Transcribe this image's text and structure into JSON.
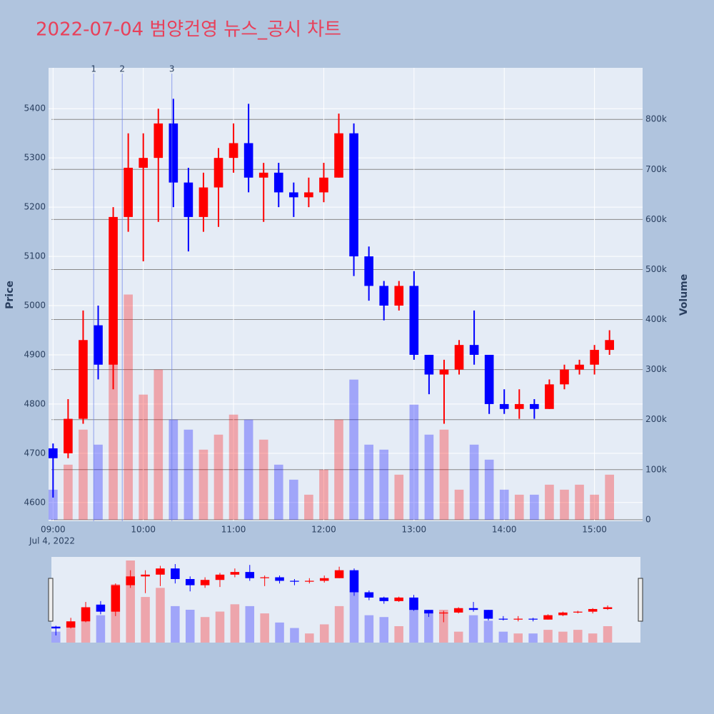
{
  "chart_data": {
    "type": "candlestick",
    "title": "2022-07-04 범양건영 뉴스_공시 차트",
    "ylabel": "Price",
    "y2label": "Volume",
    "x_date_label": "Jul 4, 2022",
    "up_color": "#ff0000",
    "down_color": "#0000ff",
    "x": [
      "2022-07-04 09:00",
      "2022-07-04 09:10",
      "2022-07-04 09:20",
      "2022-07-04 09:30",
      "2022-07-04 09:40",
      "2022-07-04 09:50",
      "2022-07-04 10:00",
      "2022-07-04 10:10",
      "2022-07-04 10:20",
      "2022-07-04 10:30",
      "2022-07-04 10:40",
      "2022-07-04 10:50",
      "2022-07-04 11:00",
      "2022-07-04 11:10",
      "2022-07-04 11:20",
      "2022-07-04 11:30",
      "2022-07-04 11:40",
      "2022-07-04 11:50",
      "2022-07-04 12:00",
      "2022-07-04 12:10",
      "2022-07-04 12:20",
      "2022-07-04 12:30",
      "2022-07-04 12:40",
      "2022-07-04 12:50",
      "2022-07-04 13:00",
      "2022-07-04 13:10",
      "2022-07-04 13:20",
      "2022-07-04 13:30",
      "2022-07-04 13:40",
      "2022-07-04 13:50",
      "2022-07-04 14:00",
      "2022-07-04 14:10",
      "2022-07-04 14:20",
      "2022-07-04 14:30",
      "2022-07-04 14:40",
      "2022-07-04 14:50",
      "2022-07-04 15:00",
      "2022-07-04 15:10"
    ],
    "open": [
      4710,
      4700,
      4770,
      4960,
      4880,
      5180,
      5280,
      5300,
      5370,
      5250,
      5180,
      5240,
      5300,
      5330,
      5260,
      5270,
      5230,
      5220,
      5230,
      5260,
      5350,
      5100,
      5040,
      5000,
      5040,
      4900,
      4860,
      4870,
      4920,
      4900,
      4800,
      4790,
      4800,
      4790,
      4840,
      4870,
      4880,
      4910
    ],
    "high": [
      4720,
      4810,
      4990,
      5000,
      5200,
      5350,
      5350,
      5400,
      5420,
      5280,
      5270,
      5320,
      5370,
      5410,
      5290,
      5290,
      5250,
      5260,
      5290,
      5390,
      5370,
      5120,
      5050,
      5050,
      5070,
      4900,
      4890,
      4930,
      4990,
      4900,
      4830,
      4830,
      4810,
      4850,
      4880,
      4890,
      4920,
      4950
    ],
    "low": [
      4610,
      4690,
      4760,
      4850,
      4830,
      5150,
      5090,
      5170,
      5200,
      5110,
      5150,
      5160,
      5270,
      5230,
      5170,
      5200,
      5180,
      5200,
      5210,
      5260,
      5060,
      5010,
      4970,
      4990,
      4890,
      4820,
      4760,
      4860,
      4880,
      4780,
      4780,
      4770,
      4770,
      4790,
      4830,
      4860,
      4860,
      4900
    ],
    "close": [
      4690,
      4770,
      4930,
      4880,
      5180,
      5280,
      5300,
      5370,
      5250,
      5180,
      5240,
      5300,
      5330,
      5260,
      5270,
      5230,
      5220,
      5230,
      5260,
      5350,
      5100,
      5040,
      5000,
      5040,
      4900,
      4860,
      4870,
      4920,
      4900,
      4800,
      4790,
      4800,
      4790,
      4840,
      4870,
      4880,
      4910,
      4930
    ],
    "volume": [
      60000,
      110000,
      180000,
      150000,
      320000,
      450000,
      250000,
      300000,
      200000,
      180000,
      140000,
      170000,
      210000,
      200000,
      160000,
      110000,
      80000,
      50000,
      100000,
      200000,
      280000,
      150000,
      140000,
      90000,
      230000,
      170000,
      180000,
      60000,
      150000,
      120000,
      60000,
      50000,
      50000,
      70000,
      60000,
      70000,
      50000,
      90000
    ],
    "news": [
      {
        "x": "2022-07-04 09:27",
        "label": "1"
      },
      {
        "x": "2022-07-04 09:46",
        "label": "2"
      },
      {
        "x": "2022-07-04 10:19",
        "label": "3"
      }
    ],
    "xlim": [
      "2022-07-04 08:57",
      "2022-07-04 15:32"
    ],
    "xticks": [
      {
        "value": "2022-07-04 09:00",
        "label": "09:00"
      },
      {
        "value": "2022-07-04 10:00",
        "label": "10:00"
      },
      {
        "value": "2022-07-04 11:00",
        "label": "11:00"
      },
      {
        "value": "2022-07-04 12:00",
        "label": "12:00"
      },
      {
        "value": "2022-07-04 13:00",
        "label": "13:00"
      },
      {
        "value": "2022-07-04 14:00",
        "label": "14:00"
      },
      {
        "value": "2022-07-04 15:00",
        "label": "15:00"
      }
    ],
    "ylim": [
      4562,
      5483
    ],
    "yticks": [
      4600,
      4700,
      4800,
      4900,
      5000,
      5100,
      5200,
      5300,
      5400
    ],
    "y2lim": [
      -3000,
      903000
    ],
    "y2ticks": [
      0,
      {
        "value": 100000,
        "label": "100k"
      },
      {
        "value": 200000,
        "label": "200k"
      },
      {
        "value": 300000,
        "label": "300k"
      },
      {
        "value": 400000,
        "label": "400k"
      },
      {
        "value": 500000,
        "label": "500k"
      },
      {
        "value": 600000,
        "label": "600k"
      },
      {
        "value": 700000,
        "label": "700k"
      },
      {
        "value": 800000,
        "label": "800k"
      }
    ]
  }
}
